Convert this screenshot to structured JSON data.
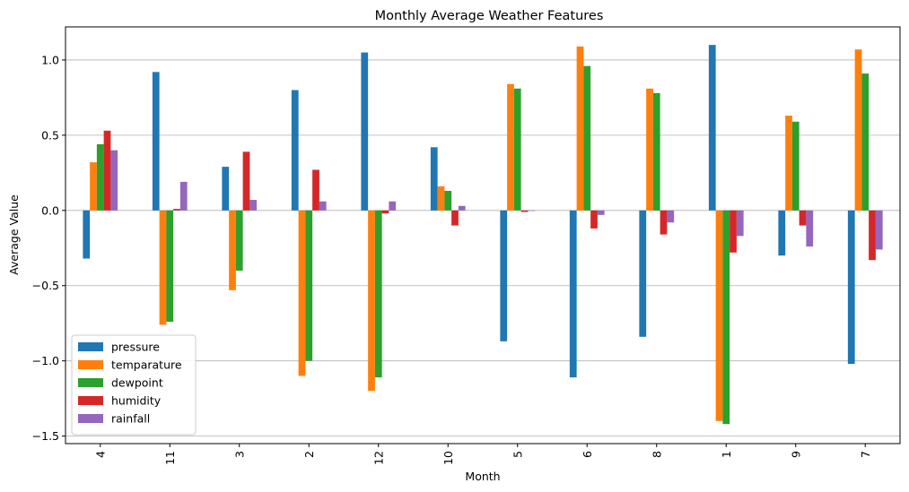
{
  "chart_data": {
    "type": "bar",
    "title": "Monthly Average Weather Features",
    "xlabel": "Month",
    "ylabel": "Average Value",
    "ylim": [
      -1.55,
      1.22
    ],
    "yticks": [
      -1.5,
      -1.0,
      -0.5,
      0.0,
      0.5,
      1.0
    ],
    "ytick_labels": [
      "−1.5",
      "−1.0",
      "−0.5",
      "0.0",
      "0.5",
      "1.0"
    ],
    "grid": "horizontal",
    "legend_position": "lower-left",
    "categories": [
      "4",
      "11",
      "3",
      "2",
      "12",
      "10",
      "5",
      "6",
      "8",
      "1",
      "9",
      "7"
    ],
    "series": [
      {
        "name": "pressure",
        "color": "#1f77b4",
        "values": [
          -0.32,
          0.92,
          0.29,
          0.8,
          1.05,
          0.42,
          -0.87,
          -1.11,
          -0.84,
          1.1,
          -0.3,
          -1.02
        ]
      },
      {
        "name": "temparature",
        "color": "#ff7f0e",
        "values": [
          0.32,
          -0.76,
          -0.53,
          -1.1,
          -1.2,
          0.16,
          0.84,
          1.09,
          0.81,
          -1.4,
          0.63,
          1.07
        ]
      },
      {
        "name": "dewpoint",
        "color": "#2ca02c",
        "values": [
          0.44,
          -0.74,
          -0.4,
          -1.0,
          -1.11,
          0.13,
          0.81,
          0.96,
          0.78,
          -1.42,
          0.59,
          0.91
        ]
      },
      {
        "name": "humidity",
        "color": "#d62728",
        "values": [
          0.53,
          0.01,
          0.39,
          0.27,
          -0.02,
          -0.1,
          -0.01,
          -0.12,
          -0.16,
          -0.28,
          -0.1,
          -0.33
        ]
      },
      {
        "name": "rainfall",
        "color": "#9467bd",
        "values": [
          0.4,
          0.19,
          0.07,
          0.06,
          0.06,
          0.03,
          0.0,
          -0.03,
          -0.08,
          -0.17,
          -0.24,
          -0.26
        ]
      }
    ]
  }
}
